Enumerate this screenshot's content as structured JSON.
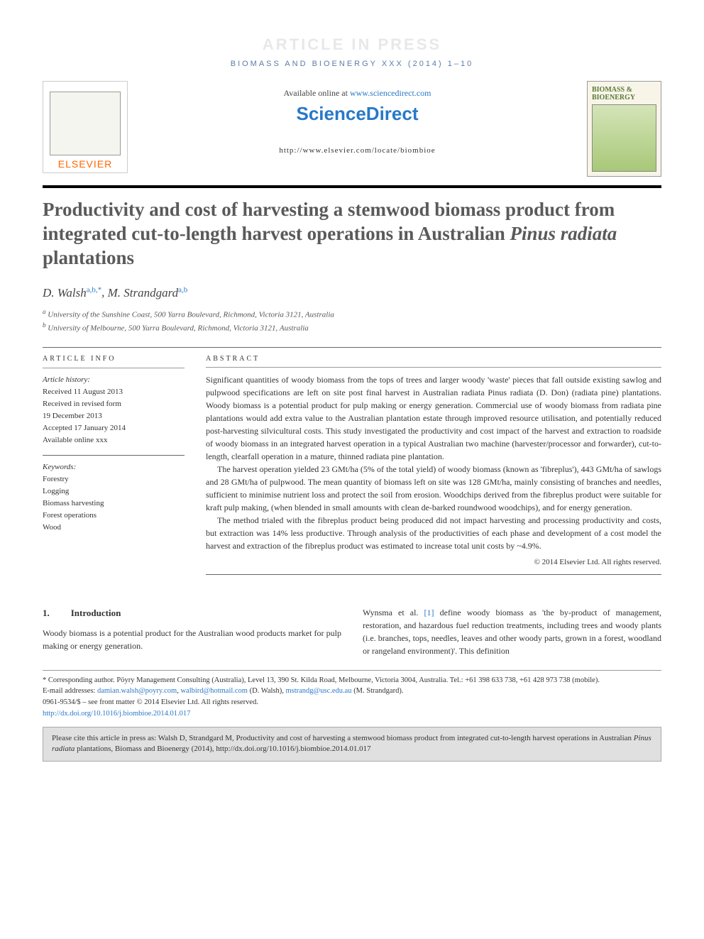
{
  "press_banner": "ARTICLE IN PRESS",
  "journal_header": "BIOMASS AND BIOENERGY XXX (2014) 1–10",
  "header": {
    "available": "Available online at ",
    "sd_url": "www.sciencedirect.com",
    "sd_logo": "ScienceDirect",
    "journal_url": "http://www.elsevier.com/locate/biombioe",
    "elsevier": "ELSEVIER",
    "cover_title": "BIOMASS & BIOENERGY"
  },
  "title_pre": "Productivity and cost of harvesting a stemwood biomass product from integrated cut-to-length harvest operations in Australian ",
  "title_italic": "Pinus radiata",
  "title_post": " plantations",
  "authors": [
    {
      "name": "D. Walsh",
      "sup": "a,b,*"
    },
    {
      "name": "M. Strandgard",
      "sup": "a,b"
    }
  ],
  "affiliations": [
    {
      "sup": "a",
      "text": "University of the Sunshine Coast, 500 Yarra Boulevard, Richmond, Victoria 3121, Australia"
    },
    {
      "sup": "b",
      "text": "University of Melbourne, 500 Yarra Boulevard, Richmond, Victoria 3121, Australia"
    }
  ],
  "info": {
    "heading": "ARTICLE INFO",
    "history_label": "Article history:",
    "history": [
      "Received 11 August 2013",
      "Received in revised form",
      "19 December 2013",
      "Accepted 17 January 2014",
      "Available online xxx"
    ],
    "keywords_label": "Keywords:",
    "keywords": [
      "Forestry",
      "Logging",
      "Biomass harvesting",
      "Forest operations",
      "Wood"
    ]
  },
  "abstract": {
    "heading": "ABSTRACT",
    "p1": "Significant quantities of woody biomass from the tops of trees and larger woody 'waste' pieces that fall outside existing sawlog and pulpwood specifications are left on site post final harvest in Australian radiata Pinus radiata (D. Don) (radiata pine) plantations. Woody biomass is a potential product for pulp making or energy generation. Commercial use of woody biomass from radiata pine plantations would add extra value to the Australian plantation estate through improved resource utilisation, and potentially reduced post-harvesting silvicultural costs. This study investigated the productivity and cost impact of the harvest and extraction to roadside of woody biomass in an integrated harvest operation in a typical Australian two machine (harvester/processor and forwarder), cut-to-length, clearfall operation in a mature, thinned radiata pine plantation.",
    "p2": "The harvest operation yielded 23 GMt/ha (5% of the total yield) of woody biomass (known as 'fibreplus'), 443 GMt/ha of sawlogs and 28 GMt/ha of pulpwood. The mean quantity of biomass left on site was 128 GMt/ha, mainly consisting of branches and needles, sufficient to minimise nutrient loss and protect the soil from erosion. Woodchips derived from the fibreplus product were suitable for kraft pulp making, (when blended in small amounts with clean de-barked roundwood woodchips), and for energy generation.",
    "p3": "The method trialed with the fibreplus product being produced did not impact harvesting and processing productivity and costs, but extraction was 14% less productive. Through analysis of the productivities of each phase and development of a cost model the harvest and extraction of the fibreplus product was estimated to increase total unit costs by ~4.9%.",
    "copyright": "© 2014 Elsevier Ltd. All rights reserved."
  },
  "body": {
    "section_num": "1.",
    "section_title": "Introduction",
    "col1": "Woody biomass is a potential product for the Australian wood products market for pulp making or energy generation.",
    "col2_pre": "Wynsma et al. ",
    "col2_ref": "[1]",
    "col2_post": " define woody biomass as 'the by-product of management, restoration, and hazardous fuel reduction treatments, including trees and woody plants (i.e. branches, tops, needles, leaves and other woody parts, grown in a forest, woodland or rangeland environment)'. This definition"
  },
  "footnotes": {
    "corresponding": "* Corresponding author. Pöyry Management Consulting (Australia), Level 13, 390 St. Kilda Road, Melbourne, Victoria 3004, Australia. Tel.: +61 398 633 738, +61 428 973 738 (mobile).",
    "email_label": "E-mail addresses: ",
    "email1": "damian.walsh@poyry.com",
    "email2": "walbird@hotmail.com",
    "email2_author": " (D. Walsh), ",
    "email3": "mstrandg@usc.edu.au",
    "email3_author": " (M. Strandgard).",
    "issn": "0961-9534/$ – see front matter © 2014 Elsevier Ltd. All rights reserved.",
    "doi": "http://dx.doi.org/10.1016/j.biombioe.2014.01.017"
  },
  "citation": {
    "pre": "Please cite this article in press as: Walsh D, Strandgard M, Productivity and cost of harvesting a stemwood biomass product from integrated cut-to-length harvest operations in Australian ",
    "italic": "Pinus radiata",
    "post": " plantations, Biomass and Bioenergy (2014), http://dx.doi.org/10.1016/j.biombioe.2014.01.017"
  },
  "colors": {
    "link": "#2878c8",
    "elsevier_orange": "#ff6600",
    "header_blue": "#5b7ca8",
    "title_gray": "#5a5a5a"
  }
}
